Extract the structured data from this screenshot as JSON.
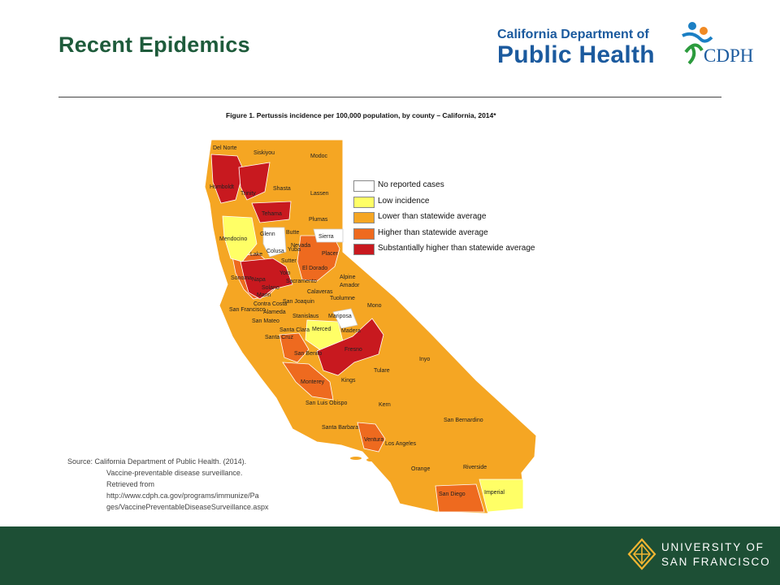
{
  "slide": {
    "title": "Recent Epidemics"
  },
  "logo": {
    "line1": "California Department of",
    "line2": "Public Health",
    "abbr": "CDPH"
  },
  "figure": {
    "title": "Figure 1. Pertussis incidence per 100,000 population, by county – California, 2014*",
    "legend": [
      {
        "label": "No reported cases",
        "color": "#ffffff"
      },
      {
        "label": "Low incidence",
        "color": "#ffff66"
      },
      {
        "label": "Lower than statewide average",
        "color": "#f5a623"
      },
      {
        "label": "Higher than statewide average",
        "color": "#ee6a1f"
      },
      {
        "label": "Substantially higher than statewide average",
        "color": "#c8191f"
      }
    ],
    "counties": [
      "Del Norte",
      "Siskiyou",
      "Modoc",
      "Humboldt",
      "Trinity",
      "Shasta",
      "Lassen",
      "Tehama",
      "Plumas",
      "Mendocino",
      "Glenn",
      "Butte",
      "Sierra",
      "Nevada",
      "Colusa",
      "Yuba",
      "Sutter",
      "Lake",
      "Placer",
      "El Dorado",
      "Yolo",
      "Sonoma",
      "Napa",
      "Sacramento",
      "Alpine",
      "Amador",
      "Solano",
      "Marin",
      "Calaveras",
      "Contra Costa",
      "San Joaquin",
      "Tuolumne",
      "Mono",
      "San Francisco",
      "Alameda",
      "Stanislaus",
      "Mariposa",
      "San Mateo",
      "Santa Clara",
      "Merced",
      "Madera",
      "Santa Cruz",
      "San Benito",
      "Fresno",
      "Inyo",
      "Monterey",
      "Kings",
      "Tulare",
      "San Luis Obispo",
      "Kern",
      "Santa Barbara",
      "San Bernardino",
      "Ventura",
      "Los Angeles",
      "Orange",
      "Riverside",
      "San Diego",
      "Imperial"
    ]
  },
  "source": {
    "lines": [
      "Source: California Department of Public Health. (2014).",
      "Vaccine-preventable disease surveillance.",
      "Retrieved from",
      "http://www.cdph.ca.gov/programs/immunize/Pa",
      "ges/VaccinePreventableDiseaseSurveillance.aspx"
    ]
  },
  "footer": {
    "line1": "UNIVERSITY OF",
    "line2": "SAN FRANCISCO"
  },
  "colors": {
    "title_green": "#1e5b3b",
    "footer_green": "#1d4f35",
    "cdph_blue": "#1b5a9e"
  }
}
